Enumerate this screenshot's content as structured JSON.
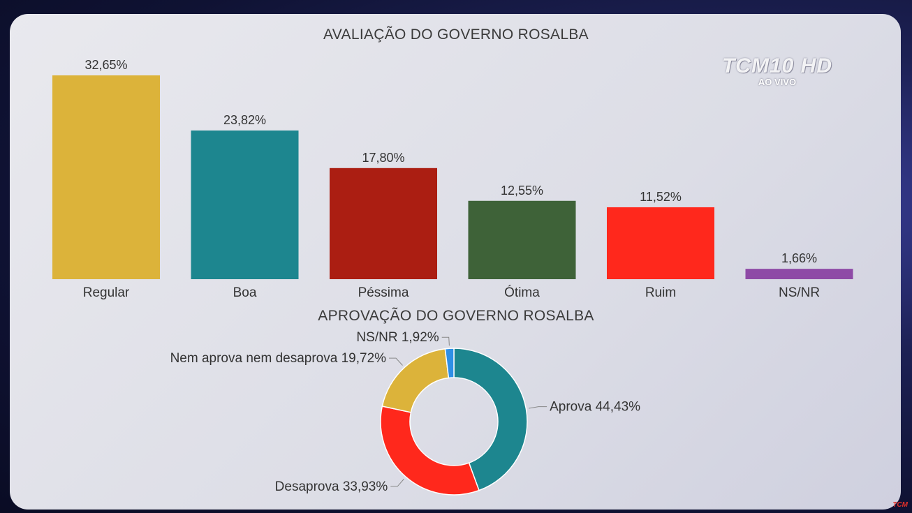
{
  "chart_data": [
    {
      "type": "bar",
      "title": "AVALIAÇÃO DO GOVERNO ROSALBA",
      "categories": [
        "Regular",
        "Boa",
        "Péssima",
        "Ótima",
        "Ruim",
        "NS/NR"
      ],
      "values": [
        32.65,
        23.82,
        17.8,
        12.55,
        11.52,
        1.66
      ],
      "value_labels": [
        "32,65%",
        "23,82%",
        "17,80%",
        "12,55%",
        "11,52%",
        "1,66%"
      ],
      "colors": [
        "#dcb33a",
        "#1d868f",
        "#ab1e12",
        "#3e6238",
        "#ff281c",
        "#8e4aa6"
      ],
      "ylim": [
        0,
        32.65
      ],
      "grid": false,
      "legend": "none"
    },
    {
      "type": "pie",
      "title": "APROVAÇÃO DO GOVERNO ROSALBA",
      "categories": [
        "Aprova",
        "Desaprova",
        "Nem aprova nem desaprova",
        "NS/NR"
      ],
      "values": [
        44.43,
        33.93,
        19.72,
        1.92
      ],
      "labels": [
        "Aprova 44,43%",
        "Desaprova 33,93%",
        "Nem aprova nem desaprova 19,72%",
        "NS/NR 1,92%"
      ],
      "colors": [
        "#1d868f",
        "#ff281c",
        "#dcb33a",
        "#2f8fe6"
      ],
      "hole": true,
      "legend": "none"
    }
  ],
  "overlay": {
    "channel_logo": "TCM10 HD",
    "live_label": "AO VIVO",
    "corner_mark": "TCM"
  }
}
